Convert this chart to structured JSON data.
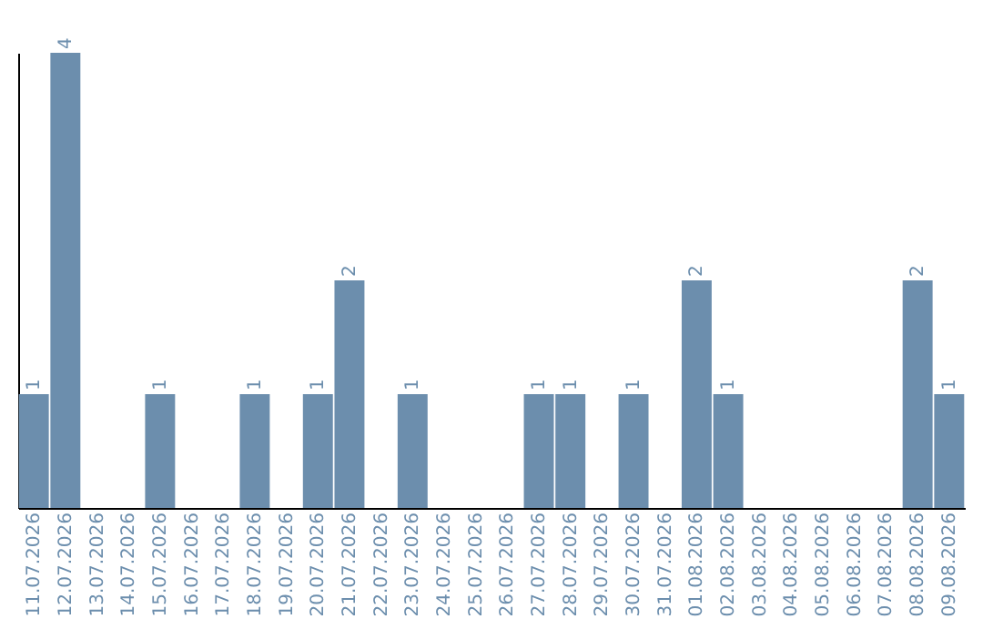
{
  "chart_data": {
    "type": "bar",
    "categories": [
      "11.07.2026",
      "12.07.2026",
      "13.07.2026",
      "14.07.2026",
      "15.07.2026",
      "16.07.2026",
      "17.07.2026",
      "18.07.2026",
      "19.07.2026",
      "20.07.2026",
      "21.07.2026",
      "22.07.2026",
      "23.07.2026",
      "24.07.2026",
      "25.07.2026",
      "26.07.2026",
      "27.07.2026",
      "28.07.2026",
      "29.07.2026",
      "30.07.2026",
      "31.07.2026",
      "01.08.2026",
      "02.08.2026",
      "03.08.2026",
      "04.08.2026",
      "05.08.2026",
      "06.08.2026",
      "07.08.2026",
      "08.08.2026",
      "09.08.2026"
    ],
    "values": [
      1,
      4,
      0,
      0,
      1,
      0,
      0,
      1,
      0,
      1,
      2,
      0,
      1,
      0,
      0,
      0,
      1,
      1,
      0,
      1,
      0,
      2,
      1,
      0,
      0,
      0,
      0,
      0,
      2,
      1
    ],
    "value_labels": [
      "1",
      "4",
      null,
      null,
      "1",
      null,
      null,
      "1",
      null,
      "1",
      "2",
      null,
      "1",
      null,
      null,
      null,
      "1",
      "1",
      null,
      "1",
      null,
      "2",
      "1",
      null,
      null,
      null,
      null,
      null,
      "2",
      "1"
    ],
    "color": "#6c8ead",
    "ylim": [
      0,
      4
    ],
    "tick_labels": "x",
    "grid": false
  }
}
